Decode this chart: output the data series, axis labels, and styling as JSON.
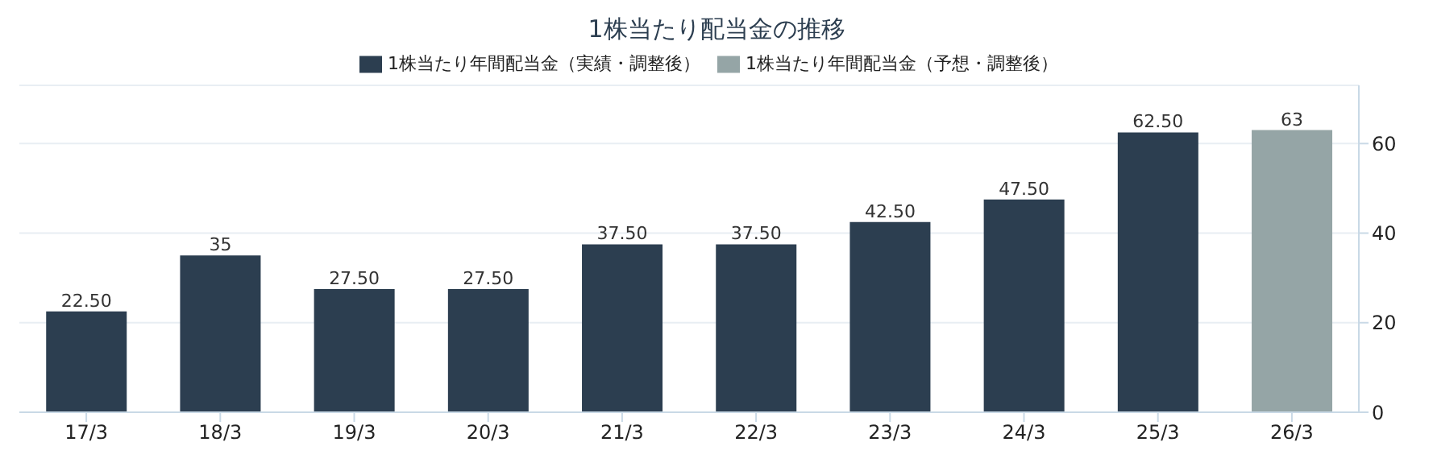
{
  "chart_data": {
    "type": "bar",
    "title": "1株当たり配当金の推移",
    "categories": [
      "17/3",
      "18/3",
      "19/3",
      "20/3",
      "21/3",
      "22/3",
      "23/3",
      "24/3",
      "25/3",
      "26/3"
    ],
    "series": [
      {
        "name": "1株当たり年間配当金（実績・調整後）",
        "color": "#2c3e50",
        "values": [
          22.5,
          35,
          27.5,
          27.5,
          37.5,
          37.5,
          42.5,
          47.5,
          62.5,
          null
        ],
        "value_labels": [
          "22.50",
          "35",
          "27.50",
          "27.50",
          "37.50",
          "37.50",
          "42.50",
          "47.50",
          "62.50",
          null
        ]
      },
      {
        "name": "1株当たり年間配当金（予想・調整後）",
        "color": "#95a5a6",
        "values": [
          null,
          null,
          null,
          null,
          null,
          null,
          null,
          null,
          null,
          63
        ],
        "value_labels": [
          null,
          null,
          null,
          null,
          null,
          null,
          null,
          null,
          null,
          "63"
        ]
      }
    ],
    "ylim": [
      0,
      73
    ],
    "yticks": [
      0,
      20,
      40,
      60
    ],
    "grid": "y",
    "legend": "top"
  }
}
